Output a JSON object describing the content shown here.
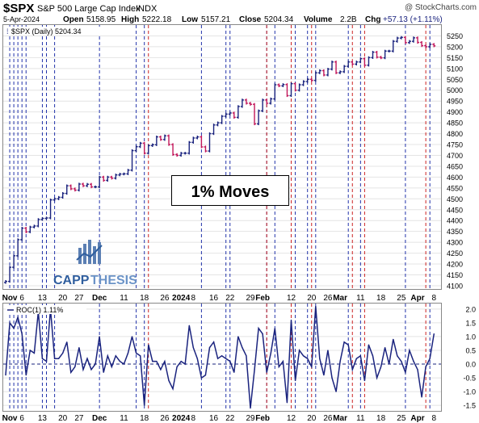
{
  "header": {
    "symbol": "$SPX",
    "name": "S&P 500 Large Cap Index",
    "exchange": "INDX",
    "copyright": "@ StockCharts.com",
    "date": "5-Apr-2024",
    "open_label": "Open",
    "open": "5158.95",
    "high_label": "High",
    "high": "5222.18",
    "low_label": "Low",
    "low": "5157.21",
    "close_label": "Close",
    "close": "5204.34",
    "volume_label": "Volume",
    "volume": "2.2B",
    "chg_label": "Chg",
    "chg": "+57.13 (+1.11%)"
  },
  "price_legend": "$SPX (Daily) 5204.34",
  "roc_legend": "ROC(1) 1.11%",
  "annotation": "1% Moves",
  "logo": {
    "text_cap": "CAPP",
    "text_thesis": "THESIS"
  },
  "colors": {
    "up": "#1a237e",
    "down": "#c2185b",
    "up_line": "#2233aa",
    "down_line": "#cc2222",
    "roc": "#1a237e"
  },
  "chart_data": [
    {
      "type": "line",
      "title": "$SPX (Daily)",
      "ylim": [
        4085,
        5300
      ],
      "y_ticks": [
        4100,
        4150,
        4200,
        4250,
        4300,
        4350,
        4400,
        4450,
        4500,
        4550,
        4600,
        4650,
        4700,
        4750,
        4800,
        4850,
        4900,
        4950,
        5000,
        5050,
        5100,
        5150,
        5200,
        5250
      ],
      "x_tick_labels": [
        {
          "i": 1,
          "label": "Nov"
        },
        {
          "i": 4,
          "label": "6"
        },
        {
          "i": 9,
          "label": "13"
        },
        {
          "i": 14,
          "label": "20"
        },
        {
          "i": 18,
          "label": "27"
        },
        {
          "i": 23,
          "label": "Dec"
        },
        {
          "i": 29,
          "label": "11"
        },
        {
          "i": 34,
          "label": "18"
        },
        {
          "i": 39,
          "label": "26"
        },
        {
          "i": 43,
          "label": "2024"
        },
        {
          "i": 46,
          "label": "8"
        },
        {
          "i": 51,
          "label": "16"
        },
        {
          "i": 55,
          "label": "22"
        },
        {
          "i": 60,
          "label": "29"
        },
        {
          "i": 63,
          "label": "Feb"
        },
        {
          "i": 70,
          "label": "12"
        },
        {
          "i": 75,
          "label": "20"
        },
        {
          "i": 79,
          "label": "26"
        },
        {
          "i": 82,
          "label": "Mar"
        },
        {
          "i": 87,
          "label": "11"
        },
        {
          "i": 92,
          "label": "18"
        },
        {
          "i": 97,
          "label": "25"
        },
        {
          "i": 101,
          "label": "Apr"
        },
        {
          "i": 105,
          "label": "8"
        }
      ],
      "one_pct_up_days": [
        1,
        2,
        3,
        4,
        5,
        9,
        10,
        12,
        23,
        32,
        34,
        48,
        54,
        55,
        64,
        66,
        71,
        74,
        76,
        84,
        87,
        98,
        104
      ],
      "one_pct_down_days": [
        35,
        64,
        70,
        75,
        85,
        88,
        103
      ],
      "series": [
        {
          "name": "$SPX",
          "values": [
            4120,
            4185,
            4238,
            4312,
            4365,
            4348,
            4370,
            4375,
            4405,
            4410,
            4412,
            4495,
            4500,
            4507,
            4525,
            4560,
            4546,
            4540,
            4568,
            4560,
            4567,
            4555,
            4555,
            4600,
            4585,
            4600,
            4595,
            4610,
            4614,
            4615,
            4632,
            4722,
            4740,
            4756,
            4710,
            4745,
            4749,
            4785,
            4773,
            4790,
            4750,
            4704,
            4700,
            4710,
            4710,
            4760,
            4780,
            4785,
            4739,
            4720,
            4800,
            4840,
            4850,
            4880,
            4890,
            4895,
            4875,
            4925,
            4955,
            4940,
            4935,
            4845,
            4905,
            4955,
            4940,
            4960,
            5025,
            5020,
            5026,
            4975,
            5030,
            5000,
            5025,
            5040,
            5050,
            5045,
            5080,
            5090,
            5070,
            5097,
            5130,
            5080,
            5085,
            5110,
            5130,
            5120,
            5130,
            5145,
            5115,
            5150,
            5175,
            5152,
            5149,
            5180,
            5180,
            5225,
            5240,
            5243,
            5219,
            5225,
            5241,
            5220,
            5205,
            5200,
            5211,
            5204
          ]
        }
      ]
    },
    {
      "type": "line",
      "title": "ROC(1)",
      "ylim": [
        -1.7,
        2.2
      ],
      "y_ticks": [
        -1.5,
        -1.0,
        -0.5,
        0.0,
        0.5,
        1.0,
        1.5,
        2.0
      ],
      "series": [
        {
          "name": "ROC(1)",
          "values": [
            -0.4,
            1.5,
            1.3,
            1.7,
            1.1,
            -0.4,
            0.5,
            0.4,
            1.9,
            0.2,
            0.1,
            2.0,
            0.2,
            0.2,
            0.4,
            0.8,
            -0.3,
            -0.1,
            0.6,
            -0.2,
            0.2,
            -0.2,
            0.0,
            1.0,
            -0.3,
            0.3,
            -0.1,
            0.3,
            0.1,
            0.0,
            0.4,
            1.0,
            0.4,
            0.3,
            -1.5,
            0.7,
            0.1,
            0.1,
            -0.2,
            0.1,
            -0.6,
            -0.9,
            -0.1,
            0.1,
            0.0,
            1.4,
            0.6,
            0.2,
            -0.5,
            -0.4,
            0.6,
            0.8,
            0.2,
            0.3,
            0.2,
            0.1,
            -0.3,
            1.0,
            0.6,
            0.3,
            -1.6,
            -0.2,
            1.3,
            1.1,
            -0.3,
            0.4,
            1.3,
            -0.1,
            0.1,
            -1.4,
            1.6,
            -0.6,
            0.5,
            0.3,
            0.2,
            -0.1,
            2.1,
            0.2,
            -0.4,
            0.5,
            -0.5,
            -1.0,
            0.1,
            0.8,
            0.7,
            -0.2,
            0.2,
            0.3,
            -0.6,
            0.7,
            0.3,
            -0.5,
            -0.1,
            0.6,
            0.0,
            0.9,
            0.3,
            0.1,
            -0.3,
            0.5,
            0.1,
            -0.2,
            -1.2,
            -0.1,
            0.2,
            1.1
          ]
        }
      ]
    }
  ]
}
